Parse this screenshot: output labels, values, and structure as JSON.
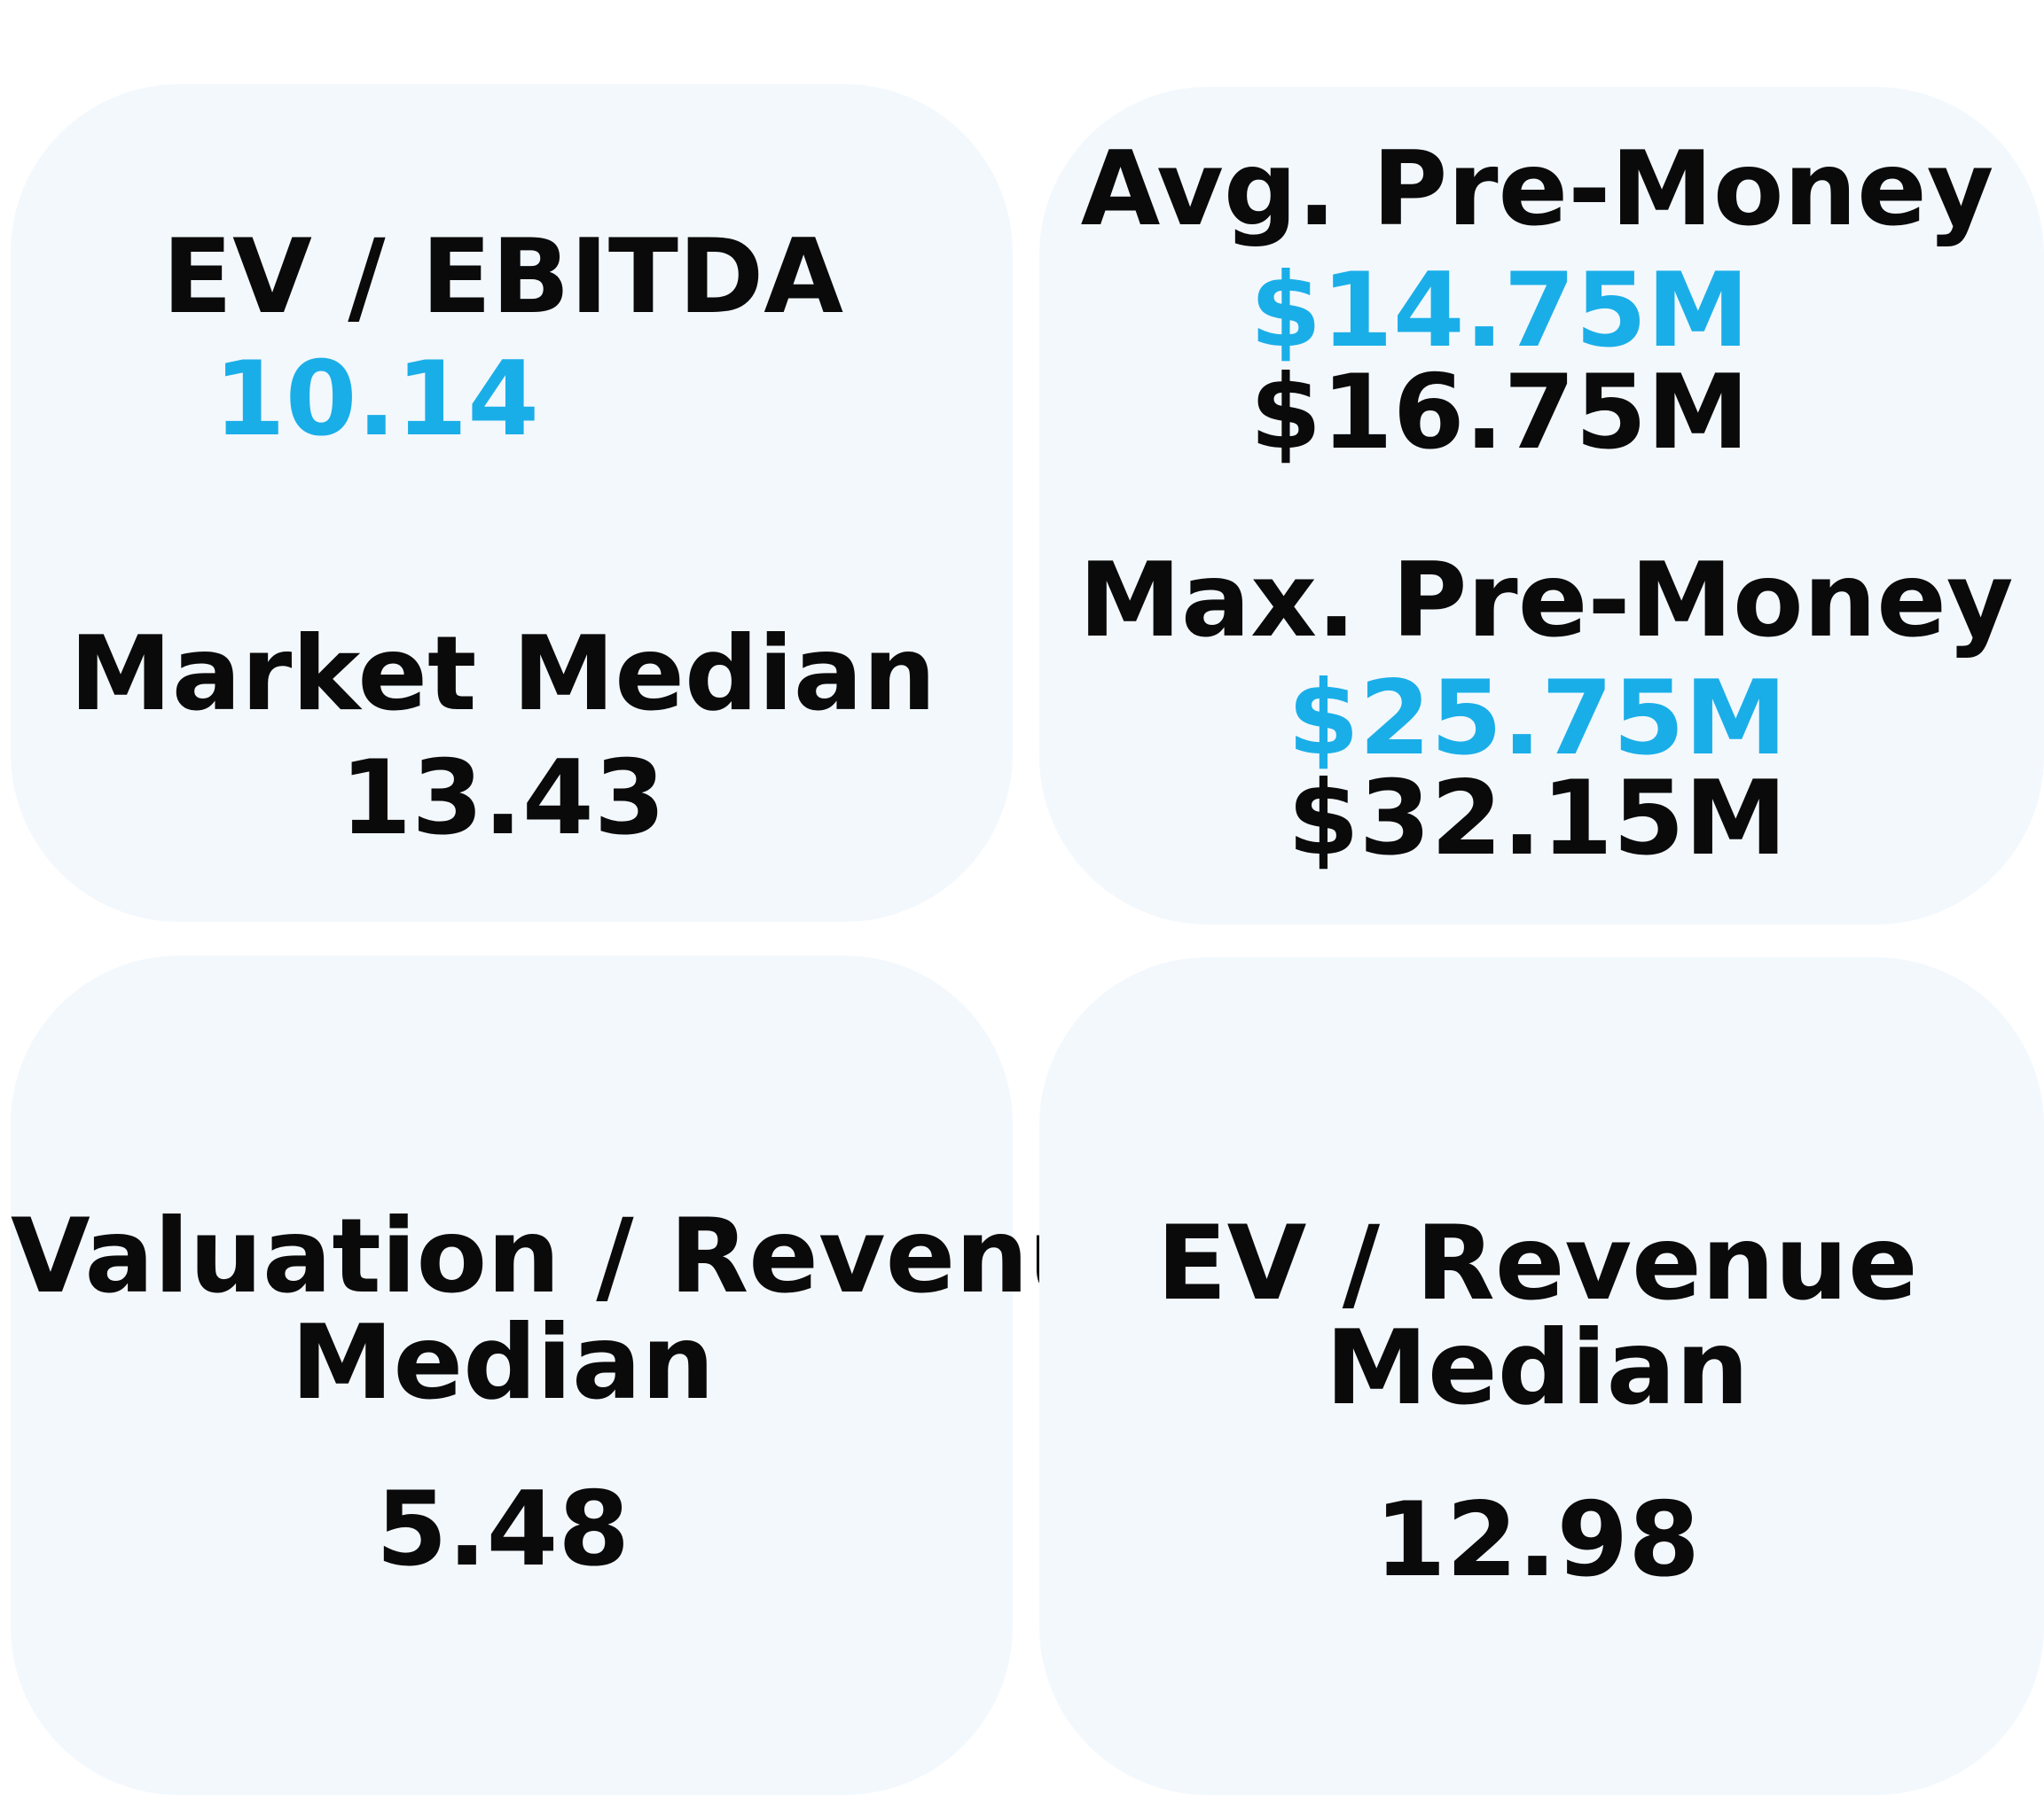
{
  "cards": [
    {
      "title": "EV / EBITDA",
      "value": "10.14",
      "sub_title": "Market Median",
      "sub_value": "13.43"
    },
    {
      "title_1": "Avg. Pre-Money",
      "value_1": "$14.75M",
      "compare_1": "$16.75M",
      "title_2": "Max. Pre-Money",
      "value_2": "$25.75M",
      "compare_2": "$32.15M"
    },
    {
      "title_line1": "Valuation / Revenue",
      "title_line2": "Median",
      "value": "5.48"
    },
    {
      "title_line1": "EV / Revenue",
      "title_line2": "Median",
      "value": "12.98"
    }
  ],
  "colors": {
    "card_background": "#f3f8fd",
    "highlight_value": "#1aaee8",
    "text": "#0a0a0a"
  }
}
